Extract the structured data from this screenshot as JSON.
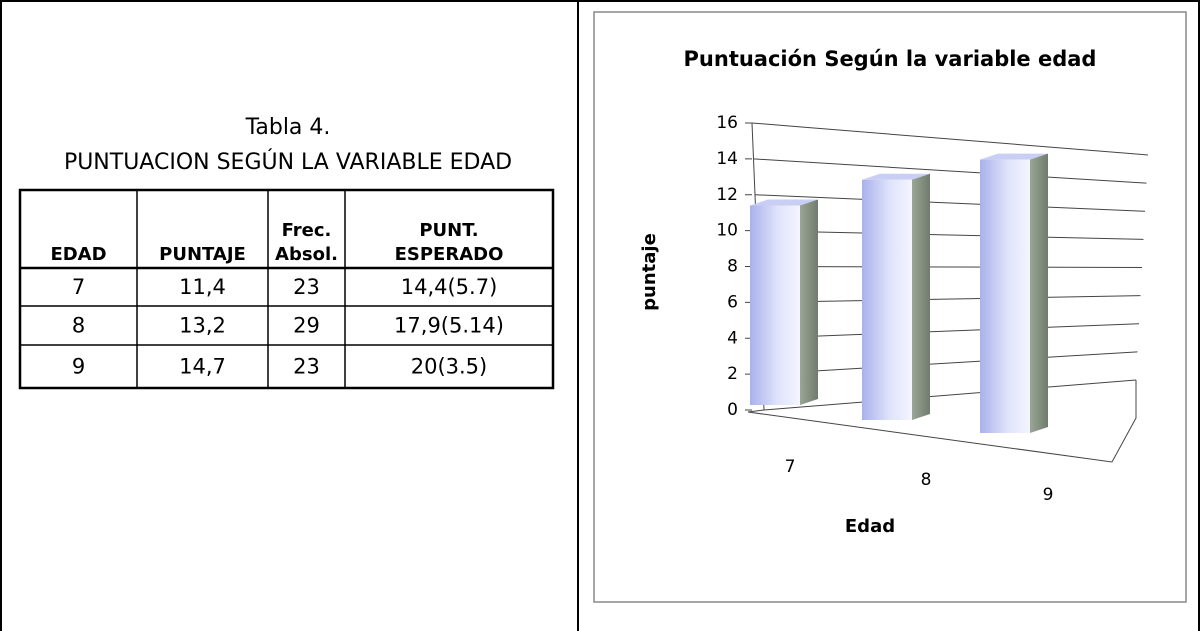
{
  "caption": {
    "number": "Tabla 4.",
    "title": "PUNTUACION SEGÚN LA VARIABLE EDAD"
  },
  "table": {
    "headers": [
      [
        "EDAD"
      ],
      [
        "PUNTAJE"
      ],
      [
        "Frec.",
        "Absol."
      ],
      [
        "PUNT.",
        "ESPERADO"
      ]
    ],
    "rows": [
      [
        "7",
        "11,4",
        "23",
        "14,4(5.7)"
      ],
      [
        "8",
        "13,2",
        "29",
        "17,9(5.14)"
      ],
      [
        "9",
        "14,7",
        "23",
        "20(3.5)"
      ]
    ]
  },
  "chart_data": {
    "type": "bar",
    "title": "Puntuación Según la variable edad",
    "x_label": "Edad",
    "y_label": "puntaje",
    "categories": [
      "7",
      "8",
      "9"
    ],
    "values": [
      11.4,
      13.2,
      14.7
    ],
    "color": "#b4bcf0",
    "ylim": [
      0,
      16
    ],
    "yticks": [
      0,
      2,
      4,
      6,
      8,
      10,
      12,
      14,
      16
    ],
    "grid": true
  }
}
